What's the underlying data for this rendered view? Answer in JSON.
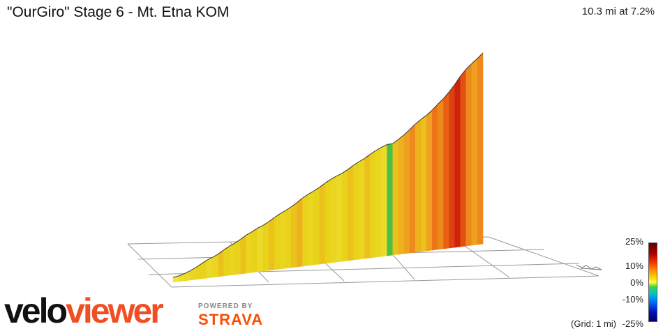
{
  "header": {
    "title": "\"OurGiro\" Stage 6 - Mt. Etna KOM",
    "summary": "10.3 mi at 7.2%"
  },
  "legend": {
    "labels": [
      "25%",
      "10%",
      "0%",
      "-10%",
      "-25%"
    ],
    "grid_note": "(Grid: 1 mi)"
  },
  "branding": {
    "logo_part1": "velo",
    "logo_part2": "viewer",
    "powered_by": "POWERED BY",
    "partner": "STRAVA"
  },
  "colors": {
    "grade_yellow": "#e8d21a",
    "grade_orange": "#f0a020",
    "grade_red": "#e03010",
    "grade_green": "#40c040",
    "logo_black": "#111111",
    "logo_orange": "#f04e23",
    "strava_orange": "#fc4c02"
  },
  "chart_data": {
    "type": "area",
    "title": "\"OurGiro\" Stage 6 - Mt. Etna KOM",
    "x_unit": "mi",
    "distance_mi": 10.3,
    "avg_grade_pct": 7.2,
    "grade_scale": [
      -25,
      25
    ],
    "grade_ticks": [
      25,
      10,
      0,
      -10,
      -25
    ],
    "grid_spacing_mi": 1,
    "profile_grades_pct": [
      3,
      5,
      6,
      7,
      8,
      8,
      6,
      7,
      9,
      8,
      7,
      8,
      9,
      7,
      8,
      6,
      8,
      9,
      8,
      7,
      8,
      9,
      10,
      8,
      7,
      8,
      9,
      8,
      7,
      6,
      8,
      9,
      8,
      7,
      9,
      8,
      7,
      6,
      2,
      9,
      10,
      11,
      12,
      10,
      9,
      11,
      13,
      12,
      14,
      16,
      18,
      15,
      12,
      11,
      12
    ]
  }
}
